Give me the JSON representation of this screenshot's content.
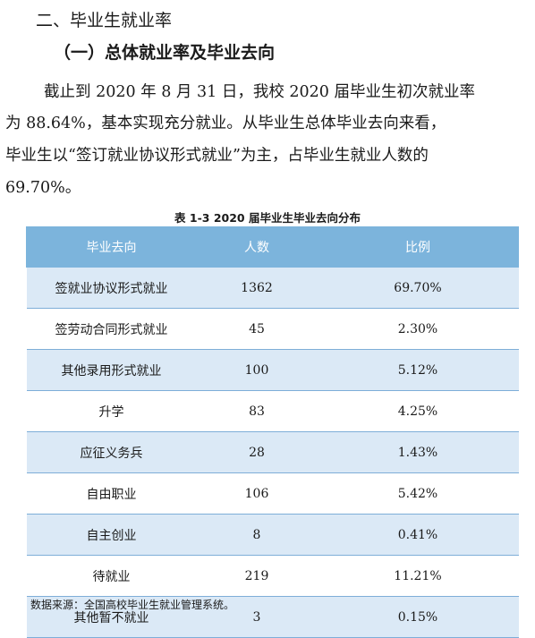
{
  "section_title": "二、毕业生就业率",
  "subsection_title": "（一）总体就业率及毕业去向",
  "paragraph_lines": [
    "截止到 2020 年 8 月 31 日，我校 2020 届毕业生初次就业率",
    "为 88.64%，基本实现充分就业。从毕业生总体毕业去向来看，",
    "毕业生以“签订就业协议形式就业”为主，占毕业生就业人数的",
    "69.70%。"
  ],
  "table": {
    "caption": "表 1-3 2020 届毕业生毕业去向分布",
    "headers": [
      "毕业去向",
      "人数",
      "比例"
    ],
    "rows": [
      [
        "签就业协议形式就业",
        "1362",
        "69.70%"
      ],
      [
        "签劳动合同形式就业",
        "45",
        "2.30%"
      ],
      [
        "其他录用形式就业",
        "100",
        "5.12%"
      ],
      [
        "升学",
        "83",
        "4.25%"
      ],
      [
        "应征义务兵",
        "28",
        "1.43%"
      ],
      [
        "自由职业",
        "106",
        "5.42%"
      ],
      [
        "自主创业",
        "8",
        "0.41%"
      ],
      [
        "待就业",
        "219",
        "11.21%"
      ],
      [
        "其他暂不就业",
        "3",
        "0.15%"
      ]
    ]
  },
  "source_note": "数据来源：全国高校毕业生就业管理系统。",
  "colors": {
    "header_bg": "#7cb4dc",
    "row_stripe": "#dbe9f6",
    "row_border": "#7eaed8"
  }
}
